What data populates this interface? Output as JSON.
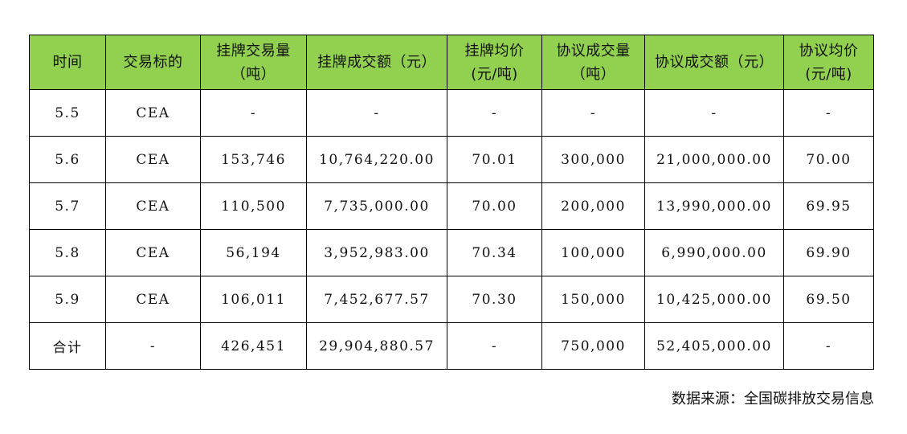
{
  "table": {
    "headers": [
      [
        "时间"
      ],
      [
        "交易标的"
      ],
      [
        "挂牌交易量",
        "（吨）"
      ],
      [
        "挂牌成交额（元）"
      ],
      [
        "挂牌均价",
        "(元/吨)"
      ],
      [
        "协议成交量",
        "（吨）"
      ],
      [
        "协议成交额（元）"
      ],
      [
        "协议均价",
        "(元/吨)"
      ]
    ],
    "rows": [
      [
        "5.5",
        "CEA",
        "-",
        "-",
        "-",
        "-",
        "-",
        "-"
      ],
      [
        "5.6",
        "CEA",
        "153,746",
        "10,764,220.00",
        "70.01",
        "300,000",
        "21,000,000.00",
        "70.00"
      ],
      [
        "5.7",
        "CEA",
        "110,500",
        "7,735,000.00",
        "70.00",
        "200,000",
        "13,990,000.00",
        "69.95"
      ],
      [
        "5.8",
        "CEA",
        "56,194",
        "3,952,983.00",
        "70.34",
        "100,000",
        "6,990,000.00",
        "69.90"
      ],
      [
        "5.9",
        "CEA",
        "106,011",
        "7,452,677.57",
        "70.30",
        "150,000",
        "10,425,000.00",
        "69.50"
      ],
      [
        "合计",
        "-",
        "426,451",
        "29,904,880.57",
        "-",
        "750,000",
        "52,405,000.00",
        "-"
      ]
    ]
  },
  "source": "数据来源：全国碳排放交易信息",
  "colors": {
    "header_bg": "#92d050",
    "border": "#000000"
  }
}
